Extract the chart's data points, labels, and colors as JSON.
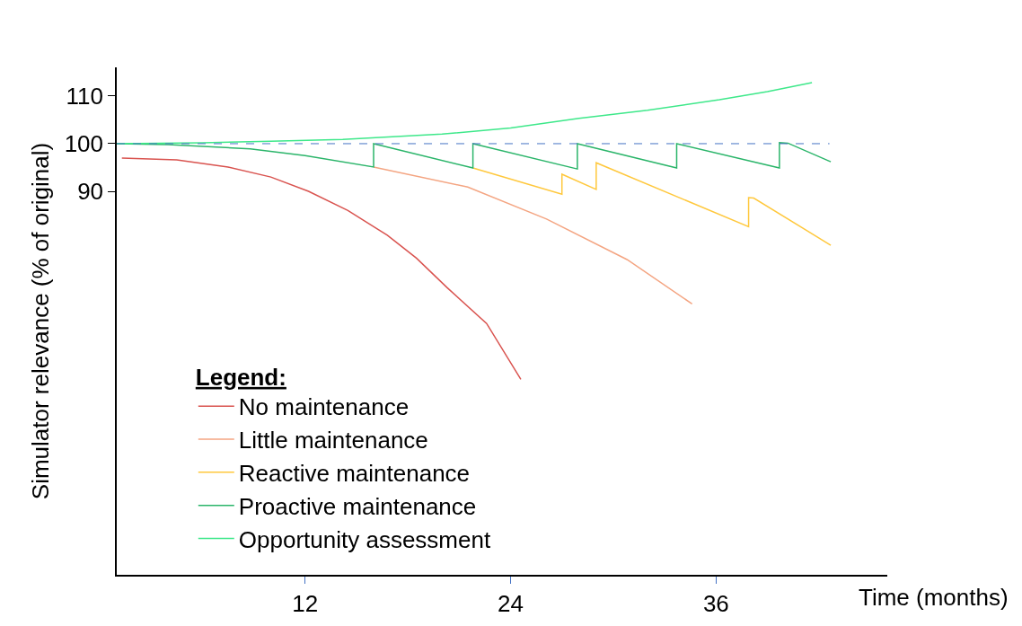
{
  "chart_data": {
    "type": "line",
    "xlabel": "Time (months)",
    "ylabel": "Simulator relevance (% of original)",
    "legend_title": "Legend:",
    "xlim": [
      1,
      46
    ],
    "ylim": [
      9.6,
      116
    ],
    "xticks": [
      12,
      24,
      36
    ],
    "yticks": [
      90,
      100,
      110
    ],
    "grid": false,
    "legend": "bottom left",
    "marker": "none",
    "line_style": "solid",
    "ref_lines": [
      {
        "axis": "y",
        "value": 100,
        "label": null,
        "color": "#4472c4",
        "line_style": "dashed"
      }
    ],
    "series": [
      {
        "name": "No maintenance",
        "color": "#d9534f",
        "x": [
          1.3,
          4.5,
          7.5,
          10,
          12.2,
          14.5,
          16.8,
          18.5,
          20.3,
          22.6,
          24.6
        ],
        "values": [
          97.0,
          96.6,
          95.1,
          93,
          90.0,
          86,
          80.8,
          76,
          69.8,
          62.3,
          50.6
        ]
      },
      {
        "name": "Little maintenance",
        "color": "#f4a582",
        "x": [
          16.0,
          21.5,
          26.1,
          30.8,
          34.6
        ],
        "values": [
          95.1,
          90.9,
          84.2,
          75.7,
          66.4
        ]
      },
      {
        "name": "Reactive maintenance",
        "color": "#ffc83d",
        "x": [
          21.8,
          27.0,
          27.0,
          29.0,
          29.0,
          37.9,
          37.9,
          38.2,
          42.7
        ],
        "values": [
          94.9,
          89.4,
          93.6,
          90.4,
          96.0,
          82.6,
          88.7,
          88.6,
          78.7
        ]
      },
      {
        "name": "Proactive maintenance",
        "color": "#2bb56a",
        "x": [
          1,
          4,
          8.8,
          12,
          16.0,
          16.0,
          21.8,
          21.8,
          27.9,
          27.9,
          33.7,
          33.7,
          39.7,
          39.7,
          40.2,
          42.7
        ],
        "values": [
          100,
          99.8,
          98.9,
          97.5,
          95.1,
          100,
          94.9,
          100,
          94.7,
          100,
          94.9,
          100,
          94.9,
          100.2,
          100.1,
          96.2
        ]
      },
      {
        "name": "Opportunity assessment",
        "color": "#3ee88a",
        "x": [
          1,
          6,
          10,
          14.2,
          20,
          24,
          28,
          32,
          36.2,
          39,
          41.6
        ],
        "values": [
          100,
          100.2,
          100.5,
          100.9,
          102,
          103.3,
          105.3,
          107,
          109.2,
          110.9,
          112.8
        ]
      }
    ]
  }
}
